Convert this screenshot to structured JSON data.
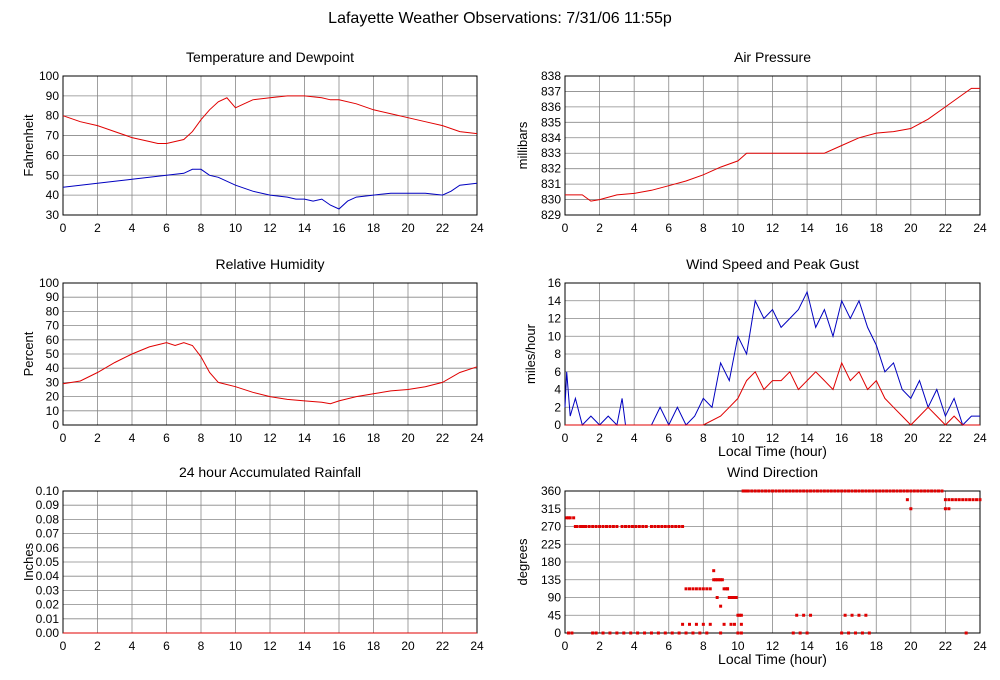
{
  "page": {
    "title": "Lafayette Weather Observations: 7/31/06 11:55p"
  },
  "colors": {
    "red": "#e00000",
    "blue": "#0000c0",
    "grid": "#888888",
    "axis": "#000000"
  },
  "chart_data": [
    {
      "id": "temp",
      "type": "line",
      "title": "Temperature and Dewpoint",
      "ylabel": "Fahrenheit",
      "xlabel": "",
      "xlim": [
        0,
        24
      ],
      "ylim": [
        30,
        100
      ],
      "yticks": [
        "30",
        "40",
        "50",
        "60",
        "70",
        "80",
        "90",
        "100"
      ],
      "xticks": [
        "0",
        "2",
        "4",
        "6",
        "8",
        "10",
        "12",
        "14",
        "16",
        "18",
        "20",
        "22",
        "24"
      ],
      "grid": true,
      "series": [
        {
          "color": "red",
          "x": [
            0,
            1,
            2,
            3,
            4,
            5,
            5.5,
            6,
            7,
            7.5,
            8,
            8.5,
            9,
            9.5,
            10,
            10.5,
            11,
            12,
            13,
            14,
            15,
            15.5,
            16,
            17,
            18,
            19,
            20,
            21,
            22,
            23,
            24
          ],
          "y": [
            80,
            77,
            75,
            72,
            69,
            67,
            66,
            66,
            68,
            72,
            78,
            83,
            87,
            89,
            84,
            86,
            88,
            89,
            90,
            90,
            89,
            88,
            88,
            86,
            83,
            81,
            79,
            77,
            75,
            72,
            71
          ]
        },
        {
          "color": "blue",
          "x": [
            0,
            1,
            2,
            3,
            4,
            5,
            6,
            7,
            7.5,
            8,
            8.5,
            9,
            10,
            11,
            12,
            13,
            13.5,
            14,
            14.5,
            15,
            15.5,
            16,
            16.5,
            17,
            18,
            19,
            20,
            21,
            22,
            22.5,
            23,
            24
          ],
          "y": [
            44,
            45,
            46,
            47,
            48,
            49,
            50,
            51,
            53,
            53,
            50,
            49,
            45,
            42,
            40,
            39,
            38,
            38,
            37,
            38,
            35,
            33,
            37,
            39,
            40,
            41,
            41,
            41,
            40,
            42,
            45,
            46
          ]
        }
      ]
    },
    {
      "id": "pressure",
      "type": "line",
      "title": "Air Pressure",
      "ylabel": "millibars",
      "xlabel": "",
      "xlim": [
        0,
        24
      ],
      "ylim": [
        829,
        838
      ],
      "yticks": [
        "829",
        "830",
        "831",
        "832",
        "833",
        "834",
        "835",
        "836",
        "837",
        "838"
      ],
      "ytick_values": [
        829,
        830,
        831,
        832,
        833,
        834,
        835,
        836,
        837,
        838
      ],
      "xticks": [
        "0",
        "2",
        "4",
        "6",
        "8",
        "10",
        "12",
        "14",
        "16",
        "18",
        "20",
        "22",
        "24"
      ],
      "grid": true,
      "series": [
        {
          "color": "red",
          "x": [
            0,
            1,
            1.5,
            2,
            3,
            4,
            5,
            6,
            7,
            8,
            9,
            10,
            10.5,
            11,
            12,
            13,
            14,
            15,
            16,
            17,
            18,
            19,
            20,
            21,
            22,
            23,
            23.5,
            24
          ],
          "y": [
            830.3,
            830.3,
            829.9,
            830.0,
            830.3,
            830.4,
            830.6,
            830.9,
            831.2,
            831.6,
            832.1,
            832.5,
            833.0,
            833.0,
            833.0,
            833.0,
            833.0,
            833.0,
            833.5,
            834.0,
            834.3,
            834.4,
            834.6,
            835.2,
            836.0,
            836.8,
            837.2,
            837.2
          ]
        }
      ]
    },
    {
      "id": "humidity",
      "type": "line",
      "title": "Relative Humidity",
      "ylabel": "Percent",
      "xlabel": "",
      "xlim": [
        0,
        24
      ],
      "ylim": [
        0,
        100
      ],
      "yticks": [
        "0",
        "10",
        "20",
        "30",
        "40",
        "50",
        "60",
        "70",
        "80",
        "90",
        "100"
      ],
      "xticks": [
        "0",
        "2",
        "4",
        "6",
        "8",
        "10",
        "12",
        "14",
        "16",
        "18",
        "20",
        "22",
        "24"
      ],
      "grid": true,
      "series": [
        {
          "color": "red",
          "x": [
            0,
            1,
            2,
            3,
            4,
            5,
            6,
            6.5,
            7,
            7.5,
            8,
            8.5,
            9,
            10,
            11,
            12,
            13,
            14,
            15,
            15.5,
            16,
            17,
            18,
            19,
            20,
            21,
            22,
            23,
            24
          ],
          "y": [
            29,
            31,
            37,
            44,
            50,
            55,
            58,
            56,
            58,
            56,
            48,
            37,
            30,
            27,
            23,
            20,
            18,
            17,
            16,
            15,
            17,
            20,
            22,
            24,
            25,
            27,
            30,
            37,
            41
          ]
        }
      ]
    },
    {
      "id": "wind",
      "type": "line",
      "title": "Wind Speed and Peak Gust",
      "ylabel": "miles/hour",
      "xlabel": "Local Time (hour)",
      "xlim": [
        0,
        24
      ],
      "ylim": [
        0,
        16
      ],
      "yticks": [
        "0",
        "2",
        "4",
        "6",
        "8",
        "10",
        "12",
        "14",
        "16"
      ],
      "xticks": [
        "0",
        "2",
        "4",
        "6",
        "8",
        "10",
        "12",
        "14",
        "16",
        "18",
        "20",
        "22",
        "24"
      ],
      "grid": true,
      "series": [
        {
          "color": "blue",
          "x": [
            0,
            0.1,
            0.3,
            0.6,
            1,
            1.5,
            2,
            2.5,
            3,
            3.3,
            3.5,
            4,
            5,
            5.5,
            6,
            6.5,
            7,
            7.5,
            8,
            8.5,
            9,
            9.5,
            10,
            10.5,
            11,
            11.5,
            12,
            12.5,
            13,
            13.5,
            14,
            14.5,
            15,
            15.5,
            16,
            16.5,
            17,
            17.5,
            18,
            18.5,
            19,
            19.5,
            20,
            20.5,
            21,
            21.5,
            22,
            22.5,
            23,
            23.5,
            24
          ],
          "y": [
            2,
            6,
            1,
            3,
            0,
            1,
            0,
            1,
            0,
            3,
            0,
            0,
            0,
            2,
            0,
            2,
            0,
            1,
            3,
            2,
            7,
            5,
            10,
            8,
            14,
            12,
            13,
            11,
            12,
            13,
            15,
            11,
            13,
            10,
            14,
            12,
            14,
            11,
            9,
            6,
            7,
            4,
            3,
            5,
            2,
            4,
            1,
            3,
            0,
            1,
            1
          ]
        },
        {
          "color": "red",
          "x": [
            0,
            8,
            9,
            9.5,
            10,
            10.5,
            11,
            11.5,
            12,
            12.5,
            13,
            13.5,
            14,
            14.5,
            15,
            15.5,
            16,
            16.5,
            17,
            17.5,
            18,
            18.5,
            19,
            19.5,
            20,
            20.5,
            21,
            21.5,
            22,
            22.5,
            23,
            24
          ],
          "y": [
            0,
            0,
            1,
            2,
            3,
            5,
            6,
            4,
            5,
            5,
            6,
            4,
            5,
            6,
            5,
            4,
            7,
            5,
            6,
            4,
            5,
            3,
            2,
            1,
            0,
            1,
            2,
            1,
            0,
            1,
            0,
            0
          ]
        }
      ]
    },
    {
      "id": "rain",
      "type": "line",
      "title": "24 hour Accumulated Rainfall",
      "ylabel": "Inches",
      "xlabel": "",
      "xlim": [
        0,
        24
      ],
      "ylim": [
        0,
        0.1
      ],
      "yticks": [
        "0.00",
        "0.01",
        "0.02",
        "0.03",
        "0.04",
        "0.05",
        "0.06",
        "0.07",
        "0.08",
        "0.09",
        "0.10"
      ],
      "xticks": [
        "0",
        "2",
        "4",
        "6",
        "8",
        "10",
        "12",
        "14",
        "16",
        "18",
        "20",
        "22",
        "24"
      ],
      "grid": true,
      "series": [
        {
          "color": "red",
          "x": [
            0,
            24
          ],
          "y": [
            0,
            0
          ]
        }
      ]
    },
    {
      "id": "winddir",
      "type": "scatter",
      "title": "Wind Direction",
      "ylabel": "degrees",
      "xlabel": "Local Time (hour)",
      "xlim": [
        0,
        24
      ],
      "ylim": [
        0,
        360
      ],
      "yticks": [
        "0",
        "45",
        "90",
        "135",
        "180",
        "225",
        "270",
        "315",
        "360"
      ],
      "ytick_values": [
        0,
        45,
        90,
        135,
        180,
        225,
        270,
        315,
        360
      ],
      "xticks": [
        "0",
        "2",
        "4",
        "6",
        "8",
        "10",
        "12",
        "14",
        "16",
        "18",
        "20",
        "22",
        "24"
      ],
      "grid": true,
      "series": [
        {
          "color": "red",
          "x": [
            0.1,
            0.2,
            0.3,
            0.5,
            0.6,
            0.7,
            0.9,
            1.0,
            1.1,
            1.2,
            1.4,
            1.6,
            1.8,
            2.0,
            2.2,
            2.4,
            2.6,
            2.8,
            3.0,
            3.3,
            3.5,
            3.7,
            3.9,
            4.1,
            4.3,
            4.5,
            4.7,
            5.0,
            5.2,
            5.4,
            5.6,
            5.8,
            6.0,
            6.2,
            6.4,
            6.6,
            6.8,
            7.0,
            7.2,
            7.4,
            7.6,
            7.8,
            8.0,
            8.2,
            8.4,
            8.6,
            8.7,
            8.8,
            8.9,
            9.0,
            9.1,
            9.2,
            9.3,
            9.4,
            9.5,
            9.6,
            9.7,
            9.8,
            9.9,
            10.0,
            10.1,
            10.2,
            10.3,
            10.4,
            10.5,
            10.6,
            10.8,
            11.0,
            11.2,
            11.4,
            11.6,
            11.8,
            12.0,
            12.2,
            12.4,
            12.6,
            12.8,
            13.0,
            13.2,
            13.4,
            13.6,
            13.8,
            14.0,
            14.2,
            14.4,
            14.6,
            14.8,
            15.0,
            15.2,
            15.4,
            15.6,
            15.8,
            16.0,
            16.2,
            16.4,
            16.6,
            16.8,
            17.0,
            17.2,
            17.4,
            17.6,
            17.8,
            18.0,
            18.2,
            18.4,
            18.6,
            18.8,
            19.0,
            19.2,
            19.4,
            19.6,
            19.8,
            20.0,
            20.2,
            20.4,
            20.6,
            20.8,
            21.0,
            21.2,
            21.4,
            21.6,
            21.8,
            22.0,
            22.2,
            22.4,
            22.6,
            22.8,
            23.0,
            23.2,
            23.4,
            23.6,
            23.8,
            24.0,
            0.2,
            0.4,
            1.6,
            1.8,
            2.2,
            2.6,
            3.0,
            3.4,
            3.8,
            4.2,
            4.6,
            5.0,
            5.4,
            5.8,
            6.2,
            6.6,
            7.0,
            7.4,
            7.8,
            8.2,
            9.0,
            10.0,
            10.2,
            13.2,
            13.6,
            14.0,
            16.0,
            16.4,
            16.8,
            17.2,
            17.6,
            23.2,
            6.8,
            7.2,
            7.6,
            8.0,
            8.4,
            9.2,
            9.6,
            9.8,
            10.2,
            13.4,
            13.8,
            14.2,
            16.2,
            16.6,
            17.0,
            17.4,
            8.6,
            8.8,
            9.0,
            9.4,
            19.8,
            20.0,
            22.0,
            22.2
          ],
          "y": [
            292,
            292,
            292,
            292,
            270,
            270,
            270,
            270,
            270,
            270,
            270,
            270,
            270,
            270,
            270,
            270,
            270,
            270,
            270,
            270,
            270,
            270,
            270,
            270,
            270,
            270,
            270,
            270,
            270,
            270,
            270,
            270,
            270,
            270,
            270,
            270,
            270,
            112,
            112,
            112,
            112,
            112,
            112,
            112,
            112,
            135,
            135,
            135,
            135,
            135,
            135,
            112,
            112,
            112,
            90,
            90,
            90,
            90,
            90,
            45,
            45,
            45,
            360,
            360,
            360,
            360,
            360,
            360,
            360,
            360,
            360,
            360,
            360,
            360,
            360,
            360,
            360,
            360,
            360,
            360,
            360,
            360,
            360,
            360,
            360,
            360,
            360,
            360,
            360,
            360,
            360,
            360,
            360,
            360,
            360,
            360,
            360,
            360,
            360,
            360,
            360,
            360,
            360,
            360,
            360,
            360,
            360,
            360,
            360,
            360,
            360,
            360,
            360,
            360,
            360,
            360,
            360,
            360,
            360,
            360,
            360,
            360,
            338,
            338,
            338,
            338,
            338,
            338,
            338,
            338,
            338,
            338,
            338,
            0,
            0,
            0,
            0,
            0,
            0,
            0,
            0,
            0,
            0,
            0,
            0,
            0,
            0,
            0,
            0,
            0,
            0,
            0,
            0,
            0,
            0,
            0,
            0,
            0,
            0,
            0,
            0,
            0,
            0,
            0,
            0,
            22,
            22,
            22,
            22,
            22,
            22,
            22,
            22,
            22,
            45,
            45,
            45,
            45,
            45,
            45,
            45,
            158,
            90,
            68,
            112,
            338,
            315,
            315,
            315
          ]
        }
      ]
    }
  ]
}
